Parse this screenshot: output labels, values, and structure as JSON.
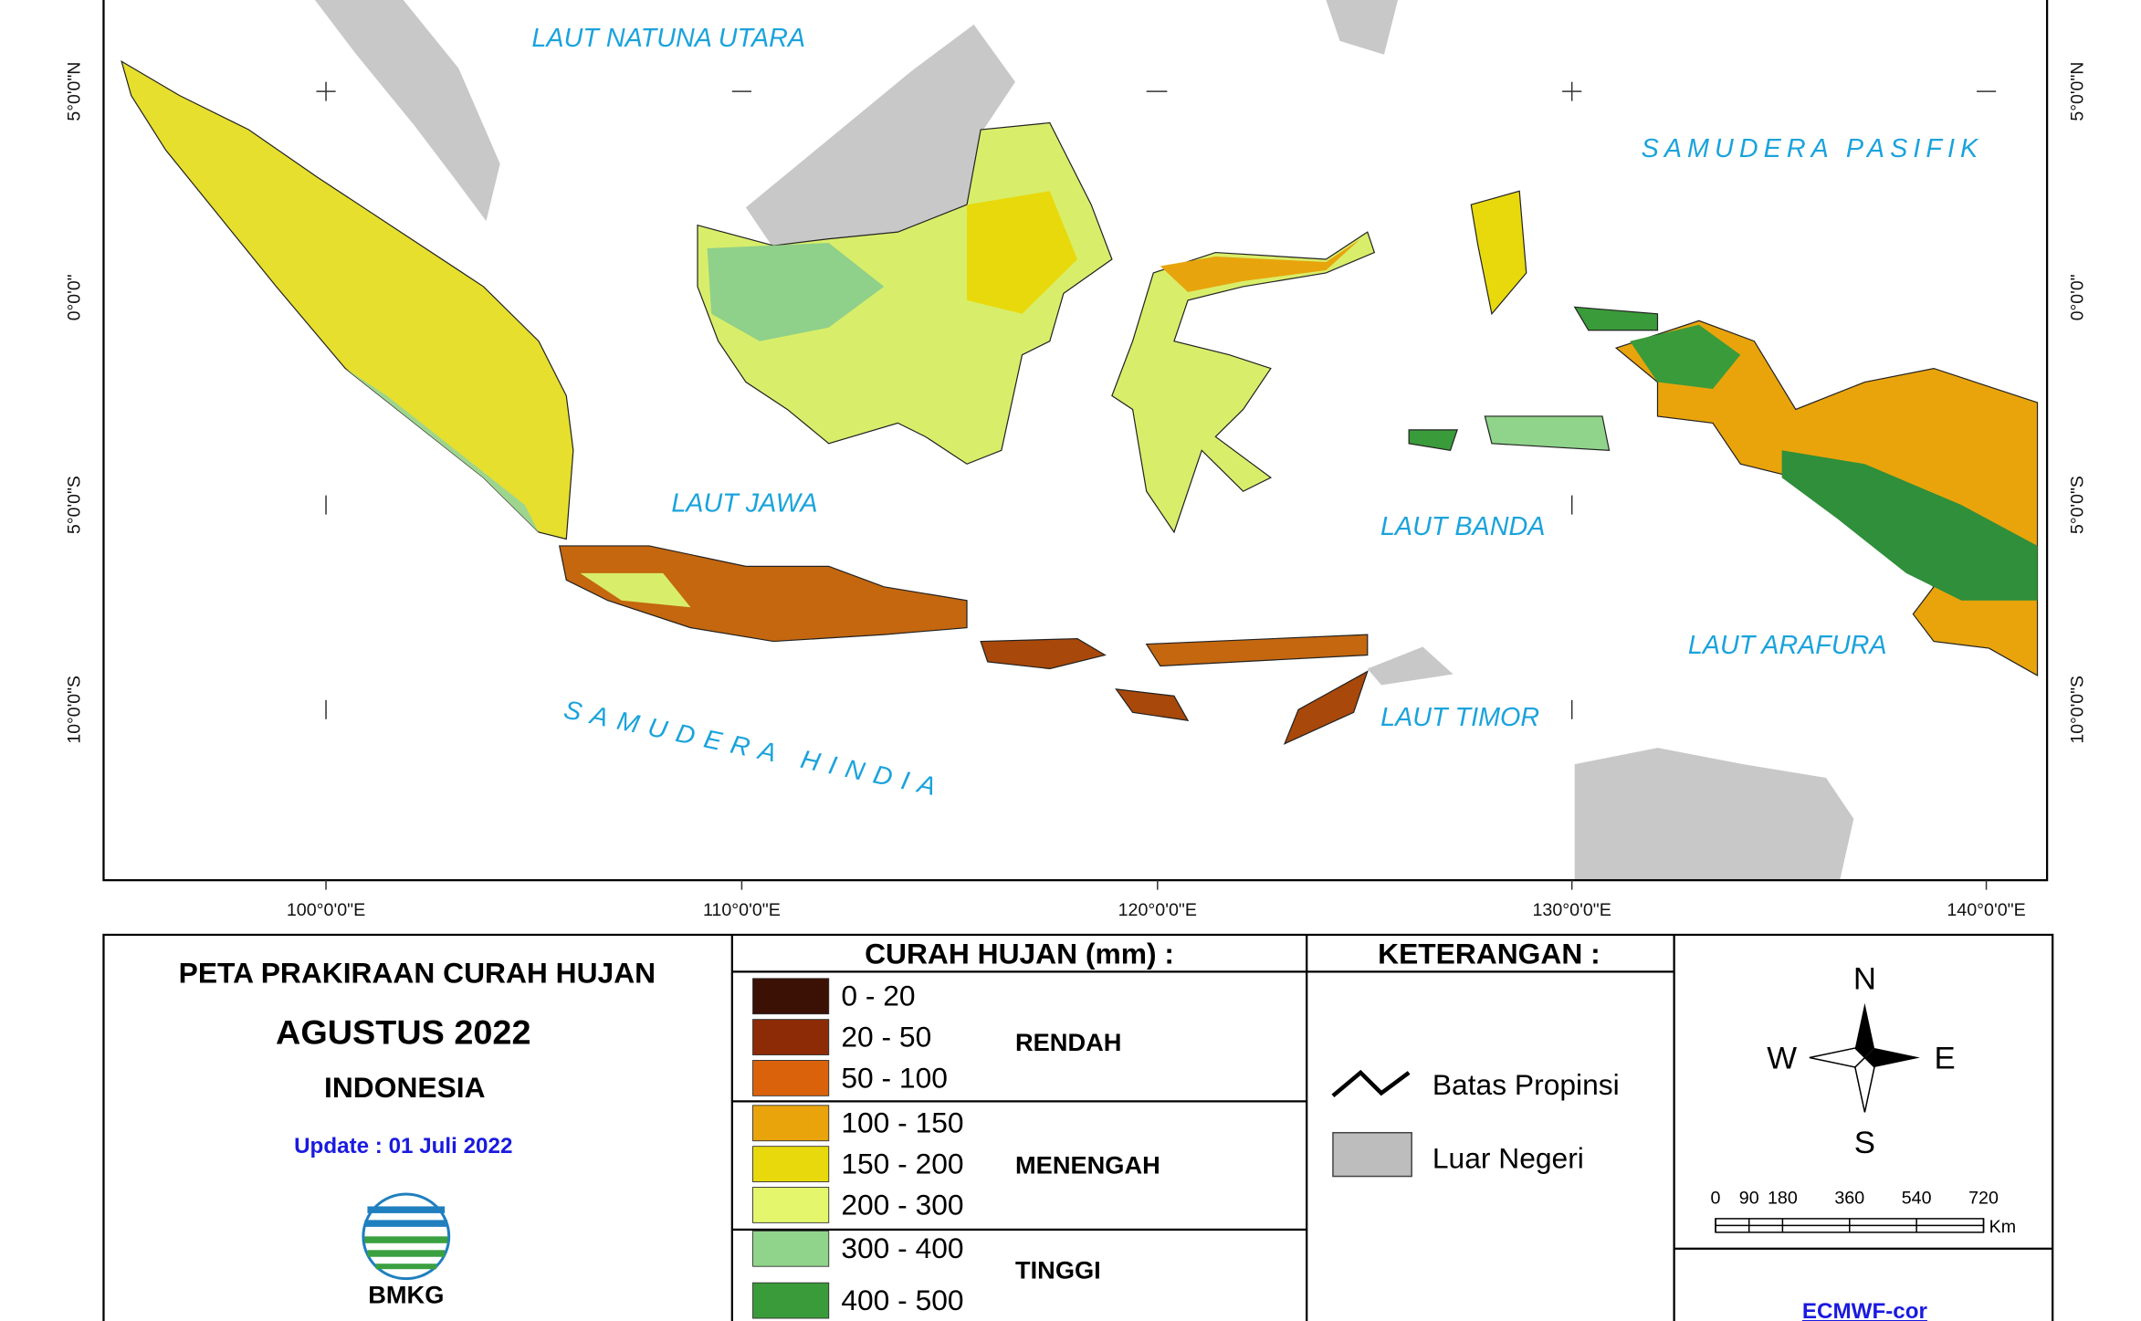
{
  "map": {
    "sea_labels": [
      "LAUT NATUNA UTARA",
      "SAMUDERA PASIFIK",
      "LAUT JAWA",
      "LAUT BANDA",
      "LAUT ARAFURA",
      "LAUT TIMOR",
      "SAMUDERA HINDIA"
    ],
    "longitude_labels": [
      "100°0'0\"E",
      "110°0'0\"E",
      "120°0'0\"E",
      "130°0'0\"E",
      "140°0'0\"E"
    ],
    "latitude_labels": [
      "5°0'0\"N",
      "0°0'0\"",
      "5°0'0\"S",
      "10°0'0\"S"
    ]
  },
  "title_block": {
    "title": "PETA PRAKIRAAN CURAH HUJAN",
    "period": "AGUSTUS 2022",
    "region": "INDONESIA",
    "update": "Update : 01 Juli  2022",
    "logo": "BMKG"
  },
  "legend": {
    "title": "CURAH HUJAN (mm) :",
    "classes": [
      {
        "range": "0 - 20",
        "color": "#3b1005"
      },
      {
        "range": "20 - 50",
        "color": "#8c2b06"
      },
      {
        "range": "50 - 100",
        "color": "#d9620b"
      },
      {
        "range": "100 - 150",
        "color": "#e9a40c"
      },
      {
        "range": "150 - 200",
        "color": "#e8d90c"
      },
      {
        "range": "200 - 300",
        "color": "#e4f66c"
      },
      {
        "range": "300 - 400",
        "color": "#8fd48a"
      },
      {
        "range": "400 - 500",
        "color": "#3a9b3a"
      }
    ],
    "groups": [
      "RENDAH",
      "MENENGAH",
      "TINGGI"
    ]
  },
  "keterangan": {
    "title": "KETERANGAN :",
    "items": [
      "Batas Propinsi",
      "Luar Negeri"
    ]
  },
  "compass": {
    "north": "N",
    "west": "W",
    "east": "E",
    "south": "S"
  },
  "scale_bar": {
    "ticks": [
      0,
      90,
      180,
      360,
      540,
      720
    ],
    "unit": "Km"
  },
  "model": "ECMWF-cor"
}
